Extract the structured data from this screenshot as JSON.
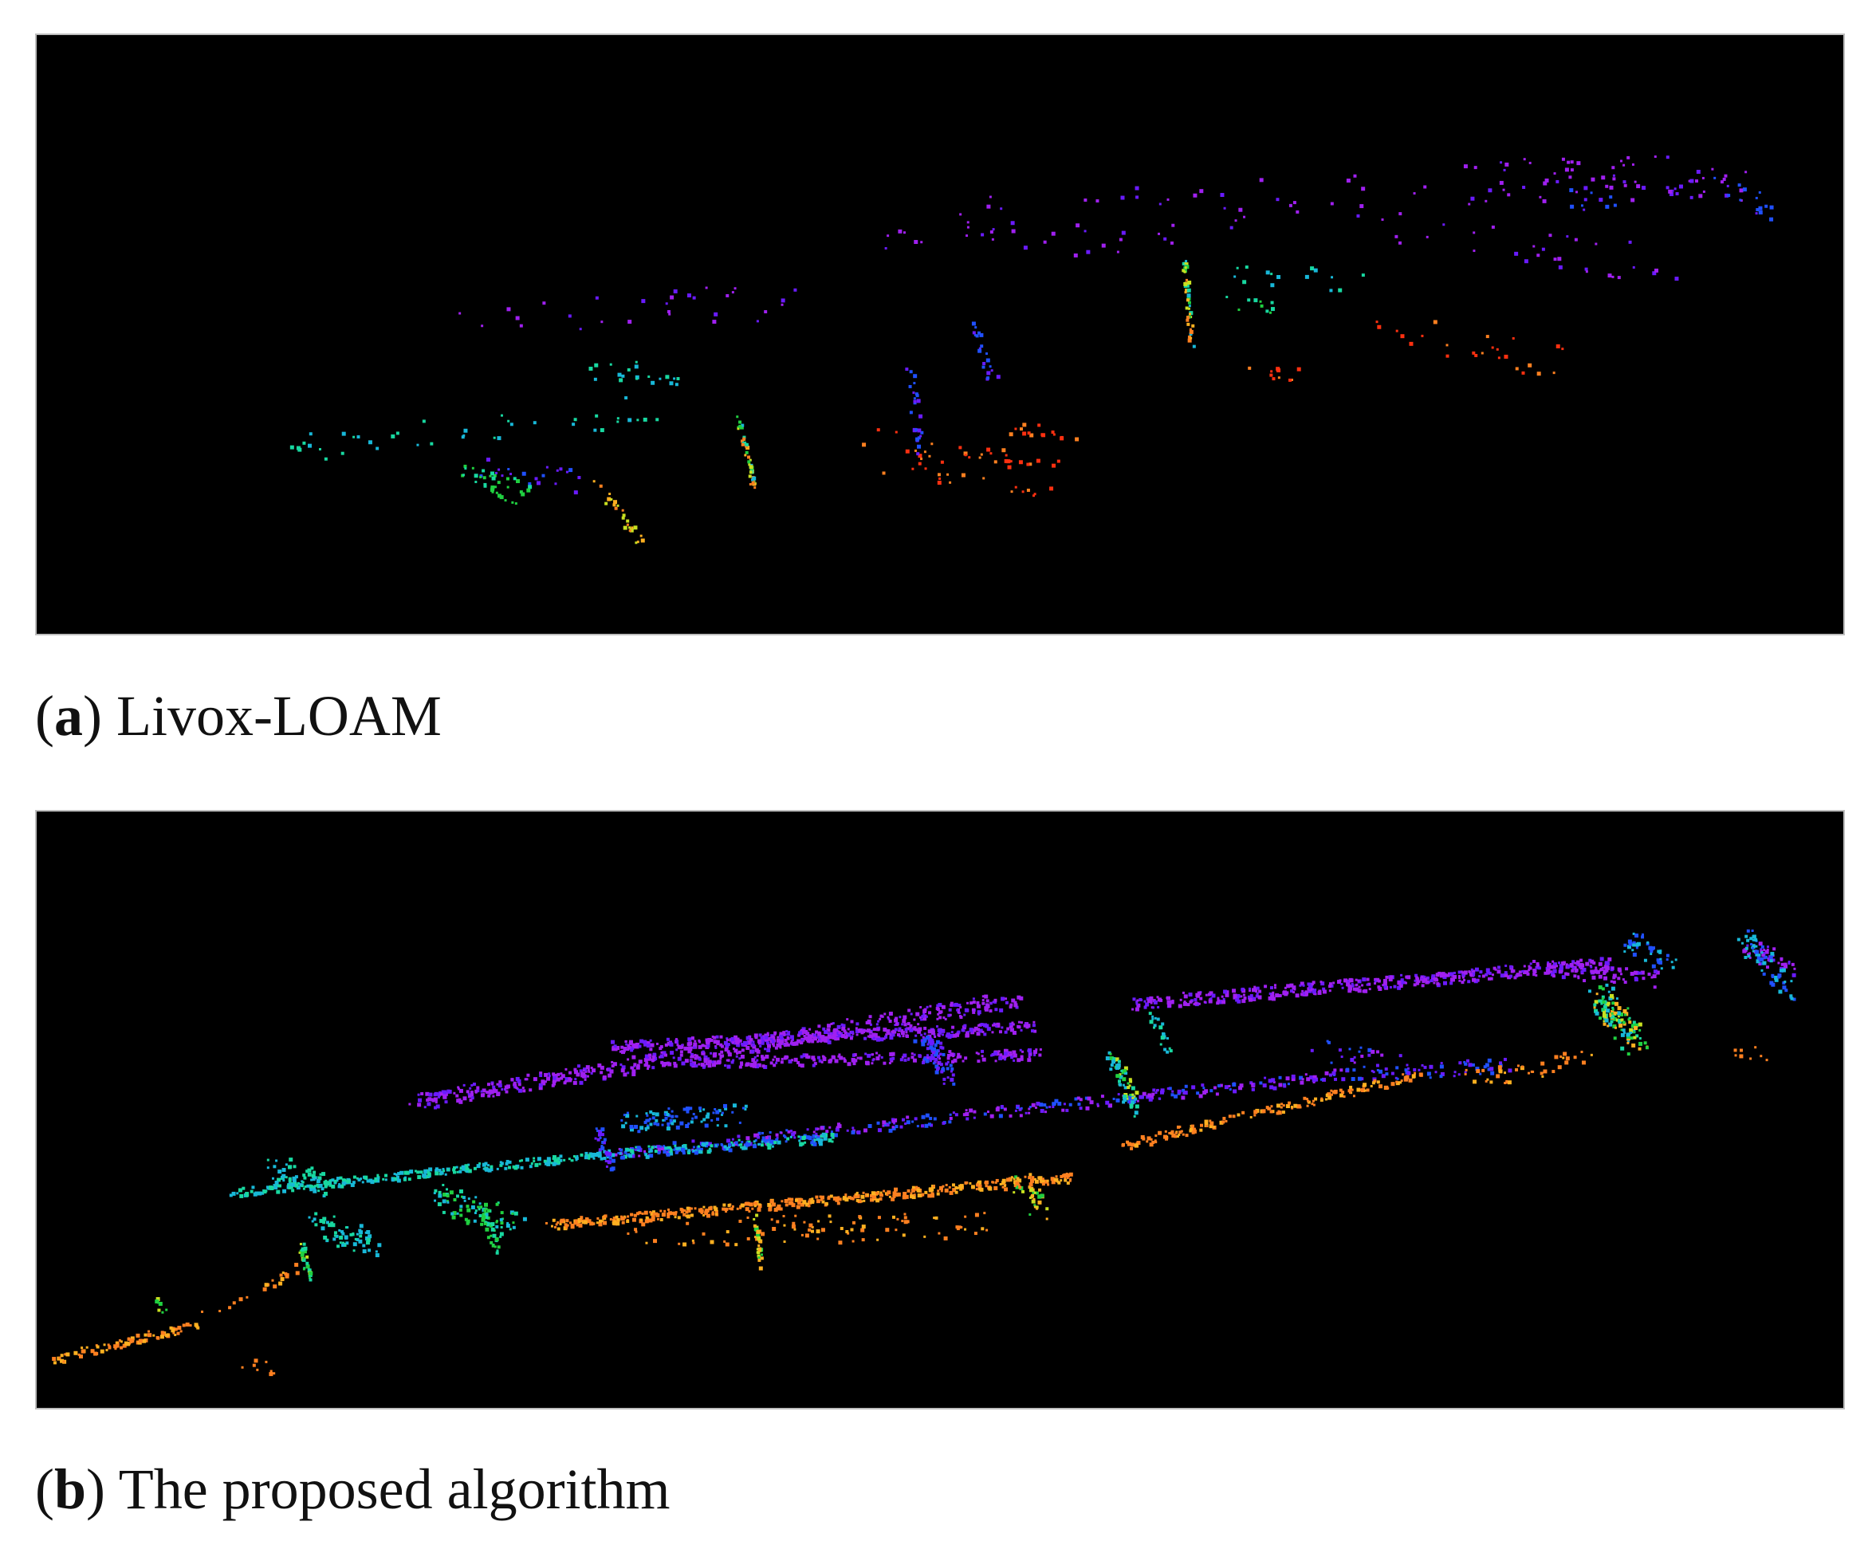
{
  "figure": {
    "panels": [
      {
        "id": "a",
        "letter": "a",
        "label": "Livox-LOAM",
        "content": "sparse colored lidar point cloud map on black background"
      },
      {
        "id": "b",
        "letter": "b",
        "label": "The proposed algorithm",
        "content": "dense colored lidar point cloud map on black background"
      }
    ]
  },
  "colors": {
    "background": "#000000",
    "frame": "#bdbdbd",
    "palette": [
      "#a020f0",
      "#6a1bff",
      "#2050ff",
      "#18b8d8",
      "#18d8a0",
      "#20d040",
      "#c8e020",
      "#ffb020",
      "#ff8020",
      "#ff3010"
    ]
  }
}
